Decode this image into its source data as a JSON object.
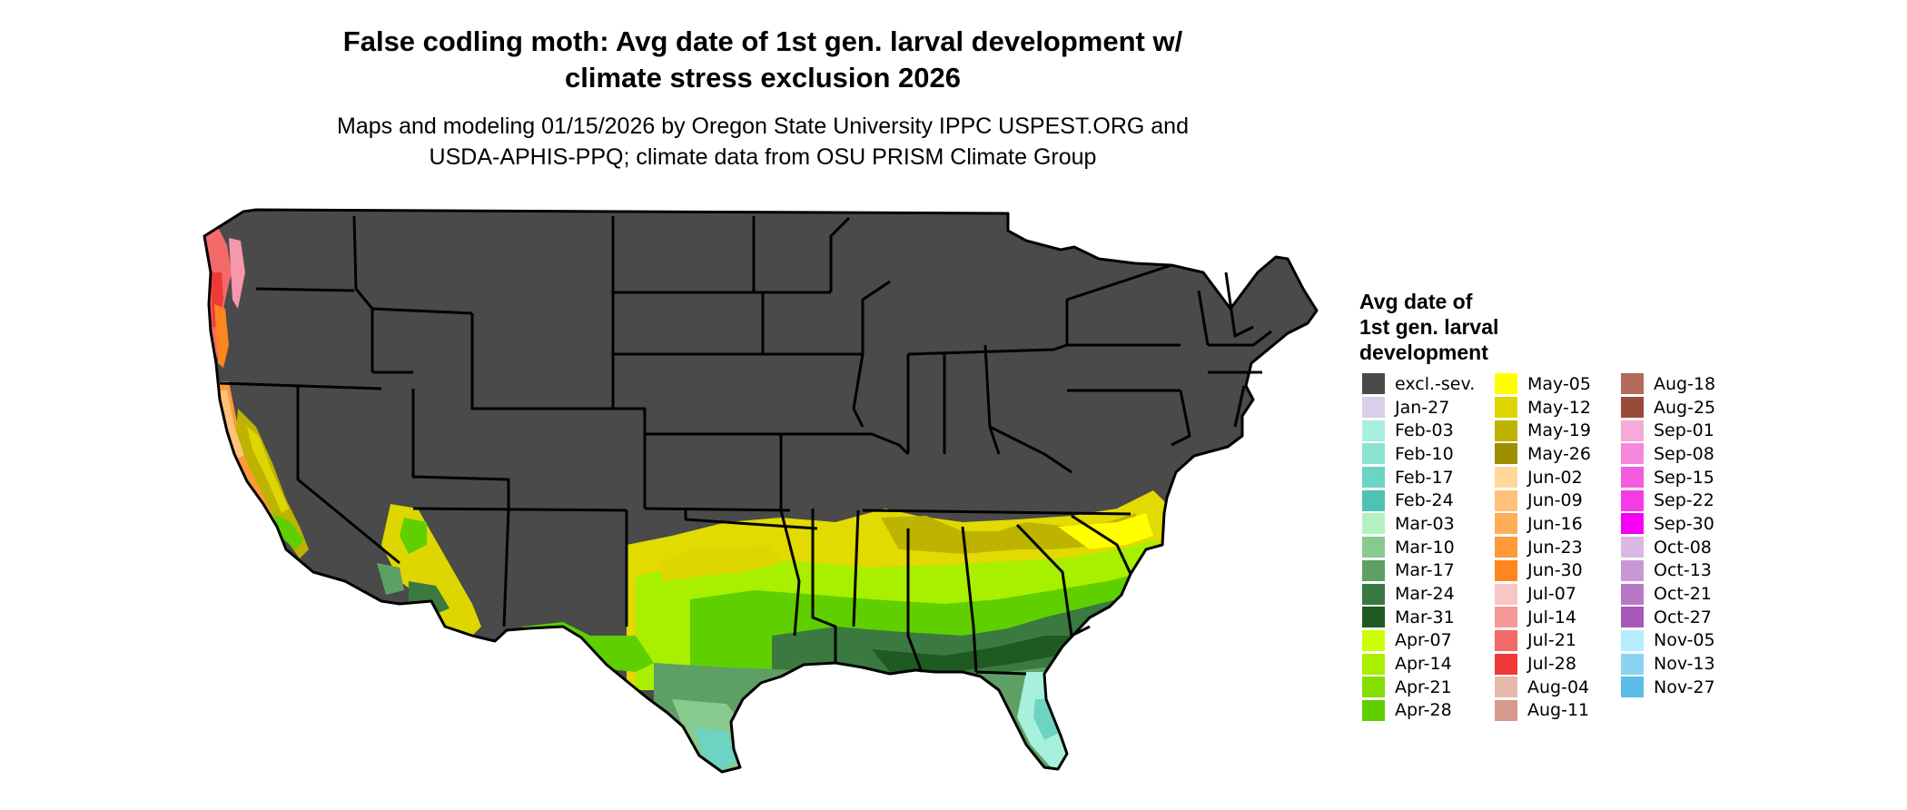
{
  "title_line1": "False codling moth: Avg date of 1st gen. larval development w/",
  "title_line2": "climate stress exclusion 2026",
  "subtitle_line1": "Maps and modeling 01/15/2026 by Oregon State University IPPC USPEST.ORG and",
  "subtitle_line2": "USDA-APHIS-PPQ; climate data from OSU PRISM Climate Group",
  "legend": {
    "title_line1": "Avg date of",
    "title_line2": "1st gen. larval",
    "title_line3": "development",
    "columns": [
      [
        {
          "label": "excl.-sev.",
          "color": "#4a4a4a"
        },
        {
          "label": "Jan-27",
          "color": "#d9cfe8"
        },
        {
          "label": "Feb-03",
          "color": "#a8f0de"
        },
        {
          "label": "Feb-10",
          "color": "#8de3d0"
        },
        {
          "label": "Feb-17",
          "color": "#6dd3c2"
        },
        {
          "label": "Feb-24",
          "color": "#4fc2b4"
        },
        {
          "label": "Mar-03",
          "color": "#b3f2c0"
        },
        {
          "label": "Mar-10",
          "color": "#88c98e"
        },
        {
          "label": "Mar-17",
          "color": "#5e9f66"
        },
        {
          "label": "Mar-24",
          "color": "#3a7a40"
        },
        {
          "label": "Mar-31",
          "color": "#1e5a22"
        },
        {
          "label": "Apr-07",
          "color": "#ccff00"
        },
        {
          "label": "Apr-14",
          "color": "#a8ef00"
        },
        {
          "label": "Apr-21",
          "color": "#84de00"
        },
        {
          "label": "Apr-28",
          "color": "#5fcf00"
        }
      ],
      [
        {
          "label": "May-05",
          "color": "#ffff00"
        },
        {
          "label": "May-12",
          "color": "#ddd600"
        },
        {
          "label": "May-19",
          "color": "#bdb300"
        },
        {
          "label": "May-26",
          "color": "#9e8f00"
        },
        {
          "label": "Jun-02",
          "color": "#ffd89a"
        },
        {
          "label": "Jun-09",
          "color": "#ffc278"
        },
        {
          "label": "Jun-16",
          "color": "#ffad58"
        },
        {
          "label": "Jun-23",
          "color": "#ff9a3a"
        },
        {
          "label": "Jun-30",
          "color": "#ff861e"
        },
        {
          "label": "Jul-07",
          "color": "#f8c6c6"
        },
        {
          "label": "Jul-14",
          "color": "#f59898"
        },
        {
          "label": "Jul-21",
          "color": "#f36a6a"
        },
        {
          "label": "Jul-28",
          "color": "#f03838"
        },
        {
          "label": "Aug-04",
          "color": "#e6b8aa"
        },
        {
          "label": "Aug-11",
          "color": "#d49a8c"
        }
      ],
      [
        {
          "label": "Aug-18",
          "color": "#b26a5c"
        },
        {
          "label": "Aug-25",
          "color": "#9a4a3a"
        },
        {
          "label": "Sep-01",
          "color": "#f7aad8"
        },
        {
          "label": "Sep-08",
          "color": "#f588dc"
        },
        {
          "label": "Sep-15",
          "color": "#f45ce0"
        },
        {
          "label": "Sep-22",
          "color": "#f53ae6"
        },
        {
          "label": "Sep-30",
          "color": "#f500f5"
        },
        {
          "label": "Oct-08",
          "color": "#dab8e2"
        },
        {
          "label": "Oct-13",
          "color": "#c998d4"
        },
        {
          "label": "Oct-21",
          "color": "#b978c6"
        },
        {
          "label": "Oct-27",
          "color": "#a858b8"
        },
        {
          "label": "Nov-05",
          "color": "#b5ecff"
        },
        {
          "label": "Nov-13",
          "color": "#8ad4f2"
        },
        {
          "label": "Nov-27",
          "color": "#5cbce8"
        }
      ]
    ]
  }
}
